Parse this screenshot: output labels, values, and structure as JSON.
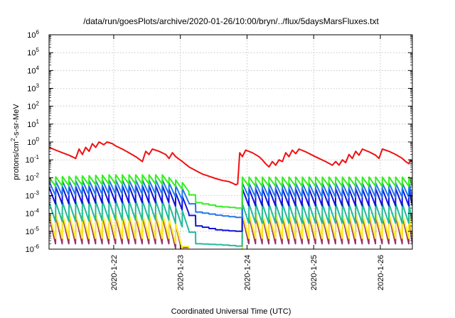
{
  "chart_data": {
    "type": "line",
    "title": "/data/run/goesPlots/archive/2020-01-26/10:00/bryn/../flux/5daysMarsFluxes.txt",
    "xlabel": "Coordinated Universal Time (UTC)",
    "ylabel": "protons/cm2-s-sr-MeV",
    "ylabel_parts": [
      "protons/cm",
      "2",
      "-s-sr-MeV"
    ],
    "yscale": "log",
    "ylim": [
      1e-06,
      1000000.0
    ],
    "xlim": [
      0,
      5.45
    ],
    "x_unit": "days since 2020-01-21 04:30 UTC",
    "grid": true,
    "x_tick_labels": [
      {
        "x": 0.97,
        "label": "2020-1-22"
      },
      {
        "x": 1.97,
        "label": "2020-1-23"
      },
      {
        "x": 2.97,
        "label": "2020-1-24"
      },
      {
        "x": 3.97,
        "label": "2020-1-25"
      },
      {
        "x": 4.97,
        "label": "2020-1-26"
      }
    ],
    "y_tick_labels": [
      {
        "exp": -6
      },
      {
        "exp": -5
      },
      {
        "exp": -4
      },
      {
        "exp": -3
      },
      {
        "exp": -2
      },
      {
        "exp": -1
      },
      {
        "exp": 0
      },
      {
        "exp": 1
      },
      {
        "exp": 2
      },
      {
        "exp": 3
      },
      {
        "exp": 4
      },
      {
        "exp": 5
      },
      {
        "exp": 6
      }
    ],
    "series": [
      {
        "color": "#ee1111",
        "points": [
          [
            0,
            0.5
          ],
          [
            0.1,
            0.35
          ],
          [
            0.2,
            0.25
          ],
          [
            0.3,
            0.18
          ],
          [
            0.4,
            0.12
          ],
          [
            0.45,
            0.4
          ],
          [
            0.5,
            0.2
          ],
          [
            0.55,
            0.5
          ],
          [
            0.6,
            0.3
          ],
          [
            0.65,
            0.8
          ],
          [
            0.7,
            0.5
          ],
          [
            0.75,
            1.0
          ],
          [
            0.82,
            0.7
          ],
          [
            0.87,
            1.0
          ],
          [
            0.95,
            0.8
          ],
          [
            1.0,
            0.6
          ],
          [
            1.1,
            0.4
          ],
          [
            1.2,
            0.25
          ],
          [
            1.3,
            0.15
          ],
          [
            1.4,
            0.08
          ],
          [
            1.45,
            0.3
          ],
          [
            1.5,
            0.2
          ],
          [
            1.55,
            0.4
          ],
          [
            1.65,
            0.3
          ],
          [
            1.75,
            0.2
          ],
          [
            1.8,
            0.12
          ],
          [
            1.85,
            0.25
          ],
          [
            1.9,
            0.15
          ],
          [
            2.0,
            0.08
          ],
          [
            2.1,
            0.04
          ],
          [
            2.2,
            0.025
          ],
          [
            2.3,
            0.016
          ],
          [
            2.4,
            0.012
          ],
          [
            2.5,
            0.009
          ],
          [
            2.6,
            0.007
          ],
          [
            2.7,
            0.006
          ],
          [
            2.75,
            0.005
          ],
          [
            2.8,
            0.004
          ],
          [
            2.83,
            0.0045
          ],
          [
            2.86,
            0.25
          ],
          [
            2.9,
            0.15
          ],
          [
            2.95,
            0.35
          ],
          [
            3.05,
            0.25
          ],
          [
            3.15,
            0.15
          ],
          [
            3.2,
            0.1
          ],
          [
            3.25,
            0.06
          ],
          [
            3.3,
            0.04
          ],
          [
            3.35,
            0.08
          ],
          [
            3.4,
            0.05
          ],
          [
            3.45,
            0.1
          ],
          [
            3.5,
            0.08
          ],
          [
            3.55,
            0.25
          ],
          [
            3.6,
            0.15
          ],
          [
            3.65,
            0.35
          ],
          [
            3.7,
            0.22
          ],
          [
            3.75,
            0.4
          ],
          [
            3.85,
            0.28
          ],
          [
            3.95,
            0.18
          ],
          [
            4.05,
            0.12
          ],
          [
            4.15,
            0.08
          ],
          [
            4.25,
            0.05
          ],
          [
            4.3,
            0.08
          ],
          [
            4.35,
            0.05
          ],
          [
            4.4,
            0.1
          ],
          [
            4.45,
            0.07
          ],
          [
            4.5,
            0.2
          ],
          [
            4.55,
            0.12
          ],
          [
            4.6,
            0.3
          ],
          [
            4.65,
            0.18
          ],
          [
            4.7,
            0.4
          ],
          [
            4.8,
            0.28
          ],
          [
            4.9,
            0.18
          ],
          [
            4.95,
            0.12
          ],
          [
            5.0,
            0.4
          ],
          [
            5.1,
            0.3
          ],
          [
            5.2,
            0.2
          ],
          [
            5.3,
            0.12
          ],
          [
            5.35,
            0.08
          ],
          [
            5.4,
            0.06
          ],
          [
            5.42,
            0.1
          ],
          [
            5.45,
            0.08
          ]
        ]
      },
      {
        "color": "#33ee22",
        "base": [
          [
            0,
            0.006
          ],
          [
            0.9,
            0.008
          ],
          [
            1.7,
            0.008
          ],
          [
            2.0,
            0.003
          ],
          [
            2.2,
            0.0004
          ],
          [
            2.5,
            0.00025
          ],
          [
            2.8,
            0.0002
          ],
          [
            2.82,
            0.00022
          ],
          [
            2.86,
            0.006
          ],
          [
            5.45,
            0.006
          ]
        ],
        "saw": [
          [
            0,
            1.8
          ],
          [
            2.0,
            1.8
          ],
          [
            2.02,
            1
          ],
          [
            2.86,
            1
          ],
          [
            2.88,
            1.8
          ],
          [
            5.45,
            1.8
          ]
        ]
      },
      {
        "color": "#2277ee",
        "base": [
          [
            0,
            0.0025
          ],
          [
            0.9,
            0.003
          ],
          [
            1.7,
            0.003
          ],
          [
            2.0,
            0.001
          ],
          [
            2.2,
            0.00012
          ],
          [
            2.5,
            8e-05
          ],
          [
            2.8,
            6e-05
          ],
          [
            2.82,
            7e-05
          ],
          [
            2.86,
            0.002
          ],
          [
            5.45,
            0.002
          ]
        ],
        "saw": [
          [
            0,
            2.5
          ],
          [
            2.0,
            2.5
          ],
          [
            2.02,
            1
          ],
          [
            2.86,
            1
          ],
          [
            2.88,
            2.5
          ],
          [
            5.45,
            2.5
          ]
        ]
      },
      {
        "color": "#1111dd",
        "base": [
          [
            0,
            0.001
          ],
          [
            0.9,
            0.0012
          ],
          [
            1.7,
            0.0012
          ],
          [
            2.0,
            0.0003
          ],
          [
            2.2,
            2e-05
          ],
          [
            2.5,
            1.2e-05
          ],
          [
            2.8,
            1e-05
          ],
          [
            2.82,
            1.1e-05
          ],
          [
            2.86,
            0.0008
          ],
          [
            5.45,
            0.0008
          ]
        ],
        "saw": [
          [
            0,
            3
          ],
          [
            2.0,
            3
          ],
          [
            2.02,
            1
          ],
          [
            2.86,
            1
          ],
          [
            2.88,
            3
          ],
          [
            5.45,
            3
          ]
        ]
      },
      {
        "color": "#22bb99",
        "base": [
          [
            0,
            0.00012
          ],
          [
            0.9,
            0.00015
          ],
          [
            1.7,
            0.00015
          ],
          [
            2.0,
            4e-05
          ],
          [
            2.2,
            2e-06
          ],
          [
            2.5,
            1.8e-06
          ],
          [
            2.8,
            1.5e-06
          ],
          [
            2.82,
            1.6e-06
          ],
          [
            2.86,
            0.0001
          ],
          [
            5.45,
            0.0001
          ]
        ],
        "saw": [
          [
            0,
            3.5
          ],
          [
            2.0,
            3.5
          ],
          [
            2.02,
            1
          ],
          [
            2.86,
            1
          ],
          [
            2.88,
            3.5
          ],
          [
            5.45,
            3.5
          ]
        ]
      },
      {
        "color": "#ffee22",
        "base": [
          [
            0,
            2e-05
          ],
          [
            0.9,
            2e-05
          ],
          [
            1.7,
            2e-05
          ],
          [
            1.95,
            4e-06
          ],
          [
            2.05,
            5e-07
          ],
          [
            2.84,
            5e-07
          ],
          [
            2.86,
            2e-05
          ],
          [
            5.45,
            2e-05
          ]
        ],
        "saw": [
          [
            0,
            5
          ],
          [
            1.9,
            5
          ],
          [
            1.95,
            1
          ],
          [
            2.86,
            1
          ],
          [
            2.88,
            5
          ],
          [
            5.45,
            5
          ]
        ]
      },
      {
        "color": "#993366",
        "base": [
          [
            0,
            1.2e-05
          ],
          [
            0.9,
            1.2e-05
          ],
          [
            1.7,
            1.2e-05
          ],
          [
            1.95,
            3e-06
          ],
          [
            2.05,
            5e-07
          ],
          [
            2.84,
            5e-07
          ],
          [
            2.86,
            1.2e-05
          ],
          [
            5.45,
            1.2e-05
          ]
        ],
        "saw": [
          [
            0,
            6
          ],
          [
            1.9,
            6
          ],
          [
            1.95,
            1
          ],
          [
            2.86,
            1
          ],
          [
            2.88,
            6
          ],
          [
            5.45,
            6
          ]
        ]
      }
    ]
  }
}
